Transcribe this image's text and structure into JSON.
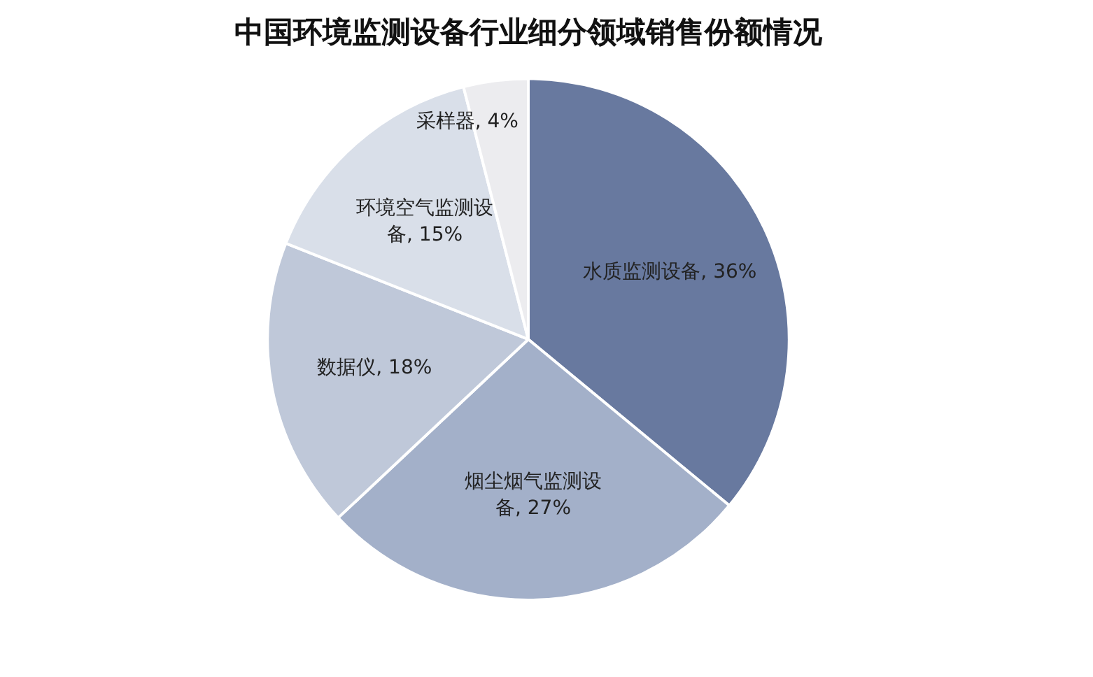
{
  "chart_data": {
    "type": "pie",
    "title": "中国环境监测设备行业细分领域销售份额情况",
    "categories": [
      "水质监测设备",
      "烟尘烟气监测设备",
      "数据仪",
      "环境空气监测设备",
      "采样器"
    ],
    "values": [
      36,
      27,
      18,
      15,
      4
    ],
    "colors": [
      "#68799f",
      "#a3b0c9",
      "#bfc8d9",
      "#d9dfe9",
      "#ececef"
    ],
    "value_labels": [
      ", 36%",
      ", 27%",
      ", 18%",
      ", 15%",
      ", 4%"
    ],
    "legend": false
  }
}
